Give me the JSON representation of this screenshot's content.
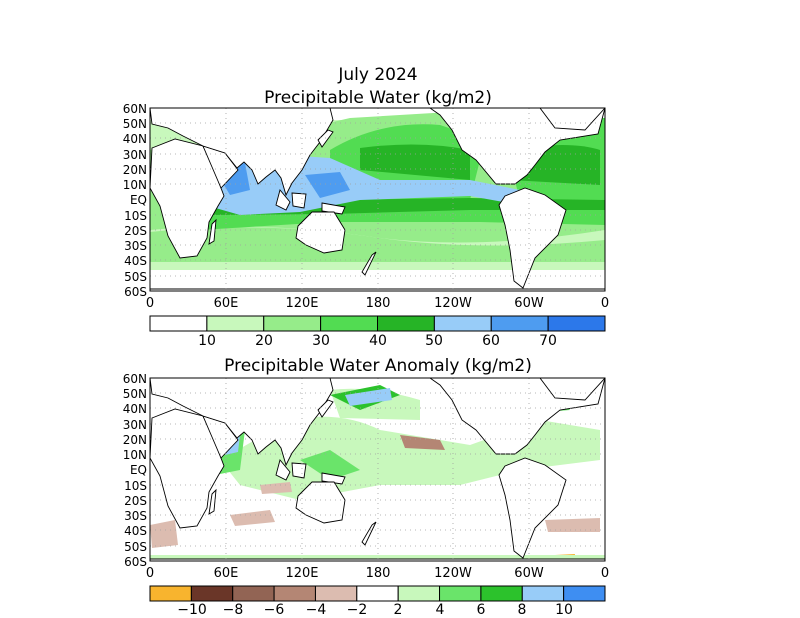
{
  "header": {
    "date": "July 2024",
    "title_top": "Precipitable Water (kg/m2)",
    "title_bottom": "Precipitable Water Anomaly (kg/m2)"
  },
  "maps": {
    "lat_labels": [
      "60N",
      "50N",
      "40N",
      "30N",
      "20N",
      "10N",
      "EQ",
      "10S",
      "20S",
      "30S",
      "40S",
      "50S",
      "60S"
    ],
    "lon_labels": [
      "0",
      "60E",
      "120E",
      "180",
      "120W",
      "60W",
      "0"
    ]
  },
  "colorbar_top": {
    "colors": [
      "#ffffff",
      "#c8f8bc",
      "#96ec8a",
      "#52dc52",
      "#26b426",
      "#98ccf8",
      "#4e9cf0",
      "#2c78ea"
    ],
    "labels": [
      "10",
      "20",
      "30",
      "40",
      "50",
      "60",
      "70"
    ]
  },
  "colorbar_bottom": {
    "colors": [
      "#f8b42e",
      "#6a3628",
      "#926454",
      "#b48674",
      "#dcbcb0",
      "#ffffff",
      "#c8f8bc",
      "#6ae46a",
      "#2cc22c",
      "#98ccf8",
      "#3e8ef2"
    ],
    "labels": [
      "−10",
      "−8",
      "−6",
      "−4",
      "−2",
      "2",
      "4",
      "6",
      "8",
      "10"
    ]
  },
  "colors": {
    "land_outline": "#000000",
    "grid": "#a0a0a0"
  }
}
